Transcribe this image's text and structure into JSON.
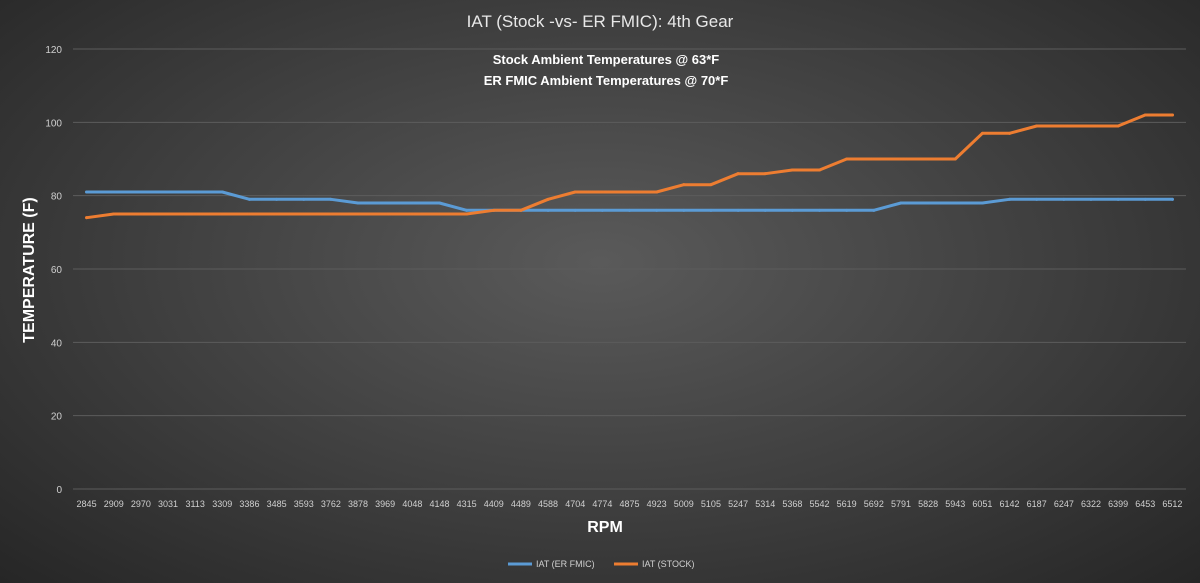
{
  "chart_data": {
    "type": "line",
    "title": "IAT (Stock -vs- ER FMIC): 4th Gear",
    "subtitle_lines": [
      "Stock Ambient Temperatures @ 63*F",
      "ER FMIC Ambient Temperatures @ 70*F"
    ],
    "xlabel": "RPM",
    "ylabel": "TEMPERATURE (F)",
    "ylim": [
      0,
      120
    ],
    "yticks": [
      "0",
      "20",
      "40",
      "60",
      "80",
      "100",
      "120"
    ],
    "grid": true,
    "legend_position": "bottom",
    "categories": [
      "2845",
      "2909",
      "2970",
      "3031",
      "3113",
      "3309",
      "3386",
      "3485",
      "3593",
      "3762",
      "3878",
      "3969",
      "4048",
      "4148",
      "4315",
      "4409",
      "4489",
      "4588",
      "4704",
      "4774",
      "4875",
      "4923",
      "5009",
      "5105",
      "5247",
      "5314",
      "5368",
      "5542",
      "5619",
      "5692",
      "5791",
      "5828",
      "5943",
      "6051",
      "6142",
      "6187",
      "6247",
      "6322",
      "6399",
      "6453",
      "6512"
    ],
    "series": [
      {
        "name": "IAT (ER FMIC)",
        "color": "#5b9bd5",
        "values": [
          81,
          81,
          81,
          81,
          81,
          81,
          79,
          79,
          79,
          79,
          78,
          78,
          78,
          78,
          76,
          76,
          76,
          76,
          76,
          76,
          76,
          76,
          76,
          76,
          76,
          76,
          76,
          76,
          76,
          76,
          78,
          78,
          78,
          78,
          79,
          79,
          79,
          79,
          79,
          79,
          79
        ]
      },
      {
        "name": "IAT (STOCK)",
        "color": "#ed7d31",
        "values": [
          74,
          75,
          75,
          75,
          75,
          75,
          75,
          75,
          75,
          75,
          75,
          75,
          75,
          75,
          75,
          76,
          76,
          79,
          81,
          81,
          81,
          81,
          83,
          83,
          86,
          86,
          87,
          87,
          90,
          90,
          90,
          90,
          90,
          97,
          97,
          99,
          99,
          99,
          99,
          102,
          102
        ]
      }
    ]
  }
}
